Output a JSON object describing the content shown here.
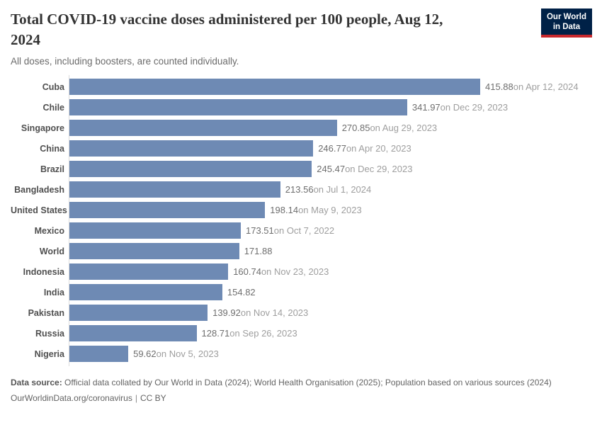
{
  "header": {
    "title_line1": "Total COVID-19 vaccine doses administered per 100 people, Aug 12,",
    "title_line2": "2024",
    "subtitle": "All doses, including boosters, are counted individually."
  },
  "logo": {
    "line1": "Our World",
    "line2": "in Data",
    "bg_color": "#002147",
    "accent_color": "#c8282d"
  },
  "chart_data": {
    "type": "bar",
    "orientation": "horizontal",
    "title": "Total COVID-19 vaccine doses administered per 100 people, Aug 12, 2024",
    "subtitle": "All doses, including boosters, are counted individually.",
    "unit": "doses per 100 people",
    "xlim": [
      0,
      415.88
    ],
    "grid": false,
    "legend": "none",
    "bar_color": "#6e8ab4",
    "categories": [
      "Cuba",
      "Chile",
      "Singapore",
      "China",
      "Brazil",
      "Bangladesh",
      "United States",
      "Mexico",
      "World",
      "Indonesia",
      "India",
      "Pakistan",
      "Russia",
      "Nigeria"
    ],
    "values": [
      415.88,
      341.97,
      270.85,
      246.77,
      245.47,
      213.56,
      198.14,
      173.51,
      171.88,
      160.74,
      154.82,
      139.92,
      128.71,
      59.62
    ],
    "entities": [
      {
        "entity": "Cuba",
        "value": 415.88,
        "value_label": "415.88",
        "date_label": "on Apr 12, 2024"
      },
      {
        "entity": "Chile",
        "value": 341.97,
        "value_label": "341.97",
        "date_label": "on Dec 29, 2023"
      },
      {
        "entity": "Singapore",
        "value": 270.85,
        "value_label": "270.85",
        "date_label": "on Aug 29, 2023"
      },
      {
        "entity": "China",
        "value": 246.77,
        "value_label": "246.77",
        "date_label": "on Apr 20, 2023"
      },
      {
        "entity": "Brazil",
        "value": 245.47,
        "value_label": "245.47",
        "date_label": "on Dec 29, 2023"
      },
      {
        "entity": "Bangladesh",
        "value": 213.56,
        "value_label": "213.56",
        "date_label": "on Jul 1, 2024"
      },
      {
        "entity": "United States",
        "value": 198.14,
        "value_label": "198.14",
        "date_label": "on May 9, 2023"
      },
      {
        "entity": "Mexico",
        "value": 173.51,
        "value_label": "173.51",
        "date_label": "on Oct 7, 2022"
      },
      {
        "entity": "World",
        "value": 171.88,
        "value_label": "171.88",
        "date_label": ""
      },
      {
        "entity": "Indonesia",
        "value": 160.74,
        "value_label": "160.74",
        "date_label": "on Nov 23, 2023"
      },
      {
        "entity": "India",
        "value": 154.82,
        "value_label": "154.82",
        "date_label": ""
      },
      {
        "entity": "Pakistan",
        "value": 139.92,
        "value_label": "139.92",
        "date_label": "on Nov 14, 2023"
      },
      {
        "entity": "Russia",
        "value": 128.71,
        "value_label": "128.71",
        "date_label": "on Sep 26, 2023"
      },
      {
        "entity": "Nigeria",
        "value": 59.62,
        "value_label": "59.62",
        "date_label": "on Nov 5, 2023"
      }
    ]
  },
  "footer": {
    "source_label": "Data source:",
    "source_text": " Official data collated by Our World in Data (2024); World Health Organisation (2025); Population based on various sources (2024)",
    "link_text": "OurWorldinData.org/coronavirus",
    "separator": "|",
    "license_text": "CC BY"
  }
}
